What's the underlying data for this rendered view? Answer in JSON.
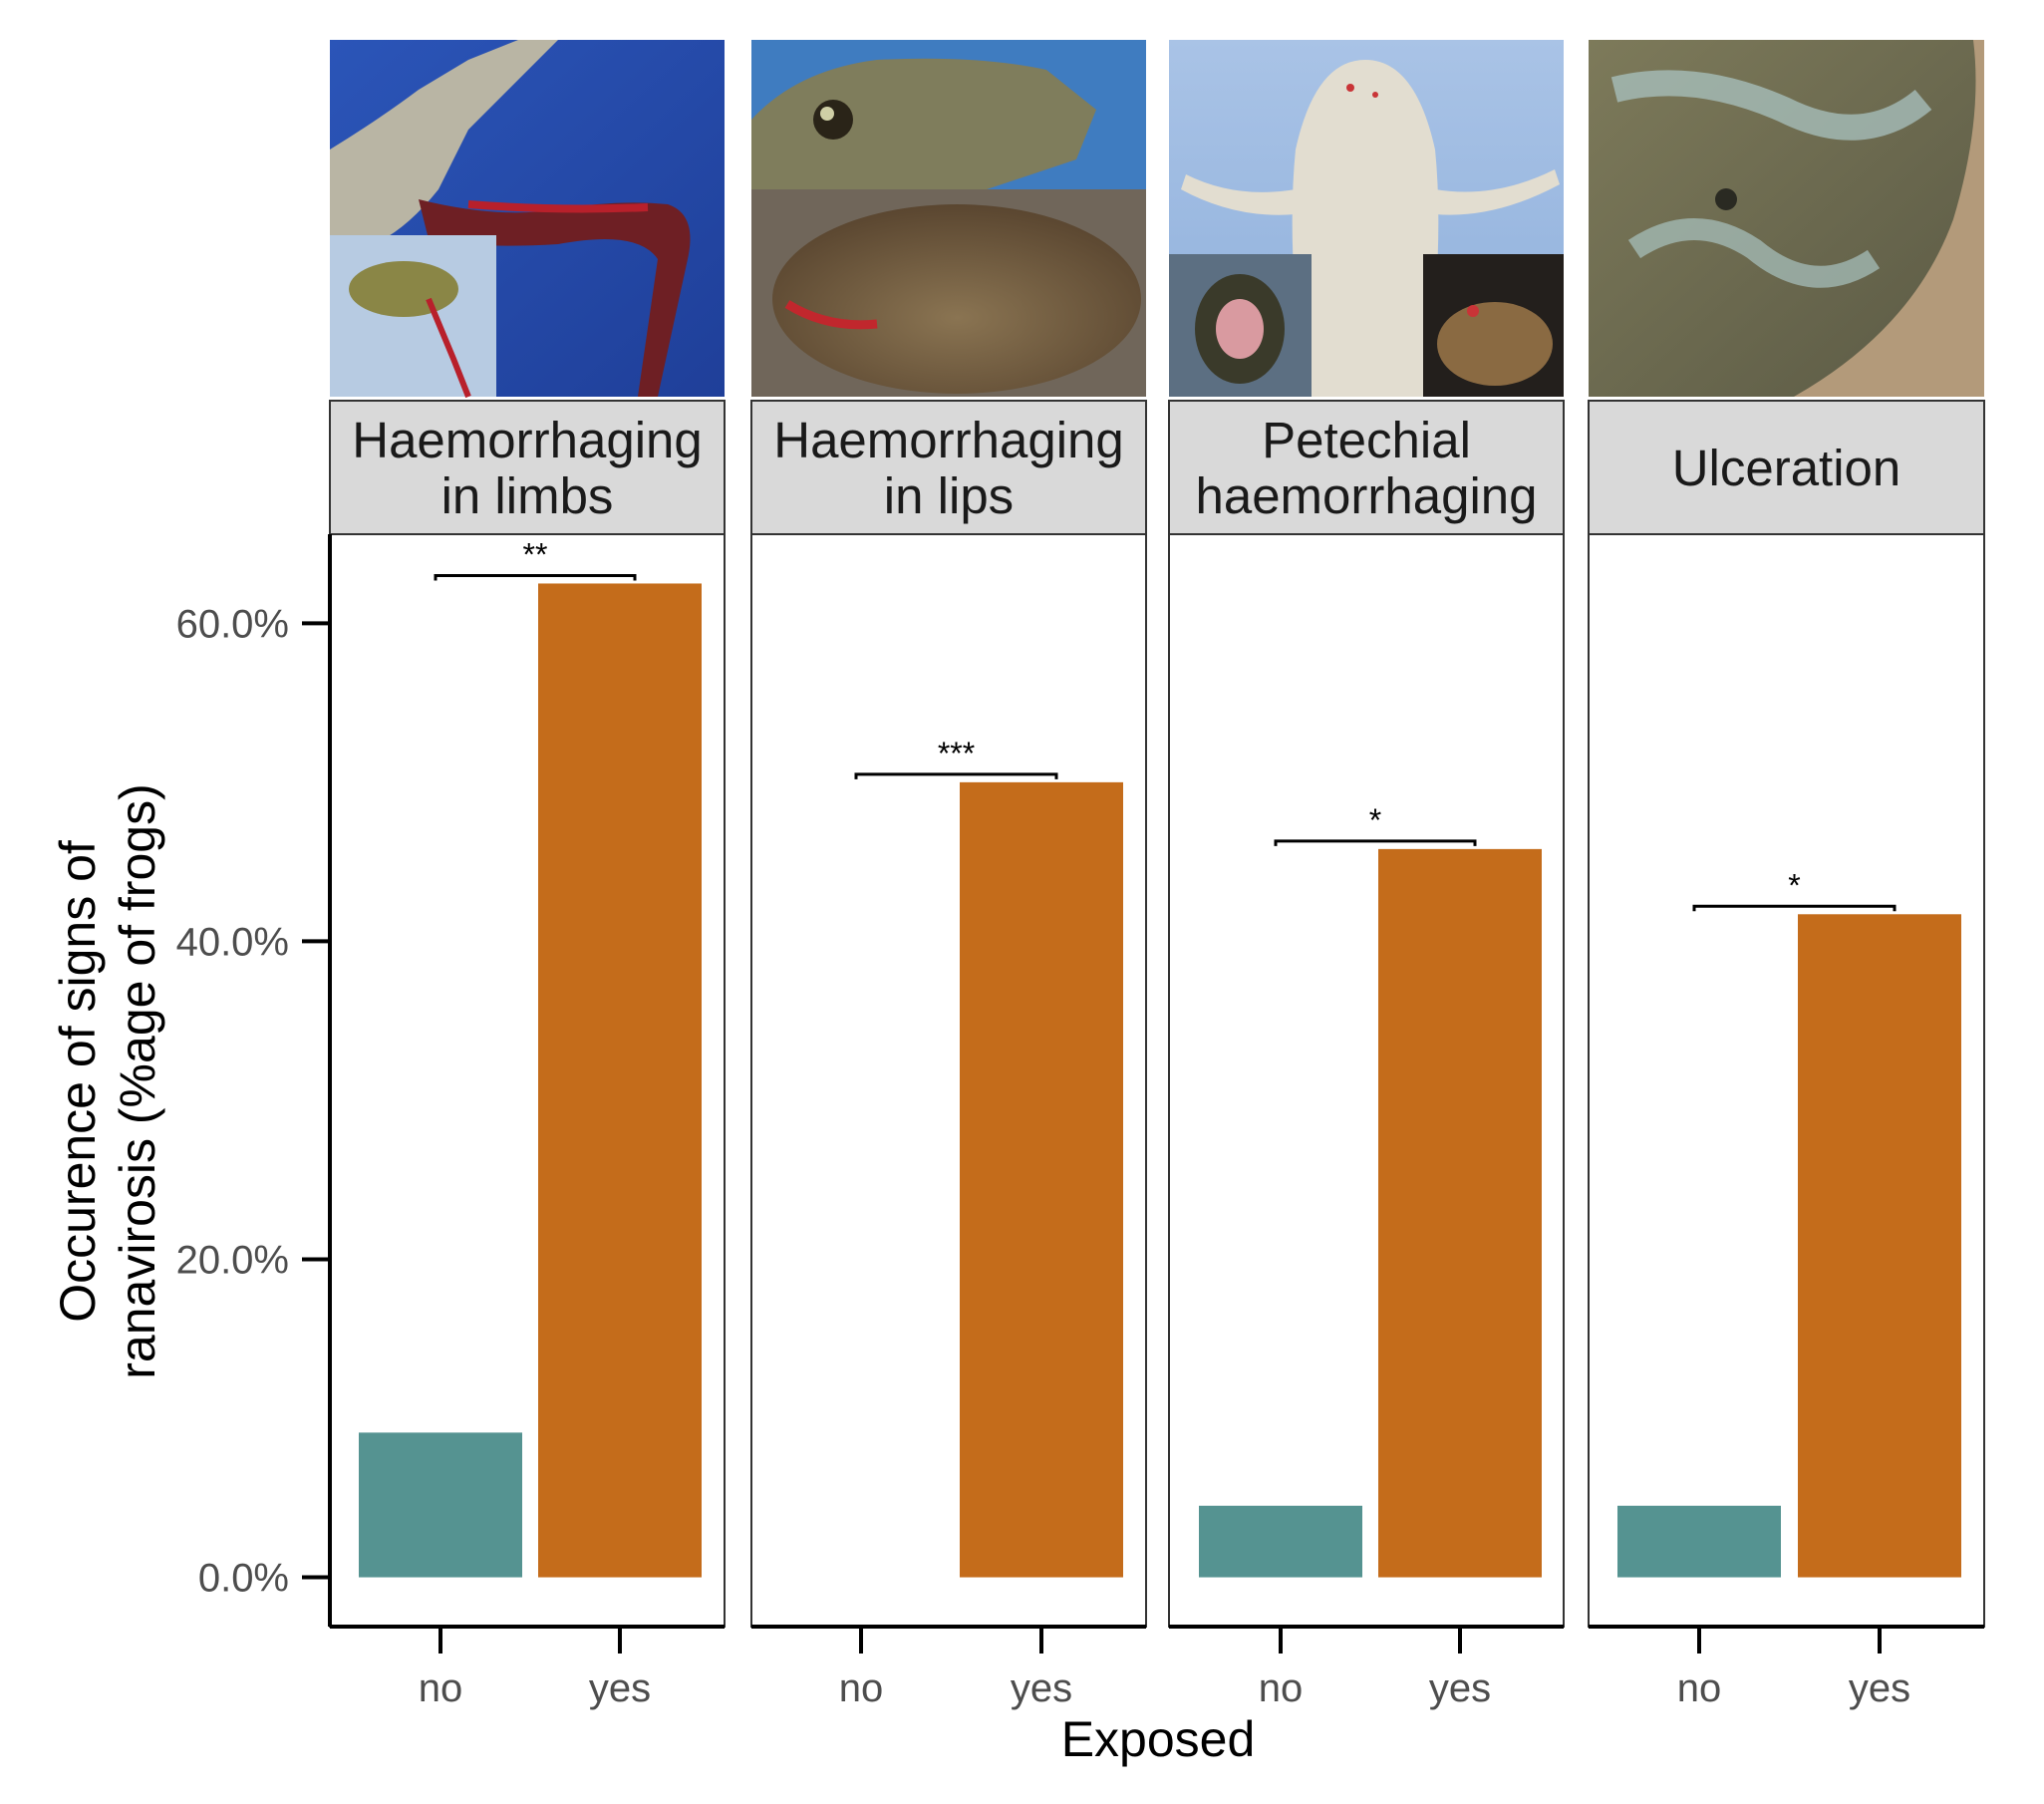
{
  "chart_data": {
    "type": "bar",
    "facets": [
      {
        "label_lines": [
          "Haemorrhaging",
          "in limbs"
        ],
        "photo": "frog-haemorrhaging-limbs-photo",
        "values": {
          "no": 9.1,
          "yes": 62.5
        },
        "significance": "**"
      },
      {
        "label_lines": [
          "Haemorrhaging",
          "in lips"
        ],
        "photo": "frog-haemorrhaging-lips-photo",
        "values": {
          "no": 0,
          "yes": 50.0
        },
        "significance": "***"
      },
      {
        "label_lines": [
          "Petechial",
          "haemorrhaging"
        ],
        "photo": "frog-petechial-haemorrhaging-photo",
        "values": {
          "no": 4.5,
          "yes": 45.8
        },
        "significance": "*"
      },
      {
        "label_lines": [
          "Ulceration"
        ],
        "photo": "frog-ulceration-photo",
        "values": {
          "no": 4.5,
          "yes": 41.7
        },
        "significance": "*"
      }
    ],
    "categories": [
      "no",
      "yes"
    ],
    "colors": {
      "no": "#559391",
      "yes": "#c46c1b"
    },
    "xlabel": "Exposed",
    "ylabel_lines": [
      "Occurence of signs of",
      "ranavirosis (%age of frogs)"
    ],
    "yticks": [
      "0.0%",
      "20.0%",
      "40.0%",
      "60.0%"
    ],
    "ytick_values": [
      0,
      20,
      40,
      60
    ],
    "ylim": [
      -3.1,
      65.6
    ],
    "grid": false,
    "legend": "none"
  }
}
